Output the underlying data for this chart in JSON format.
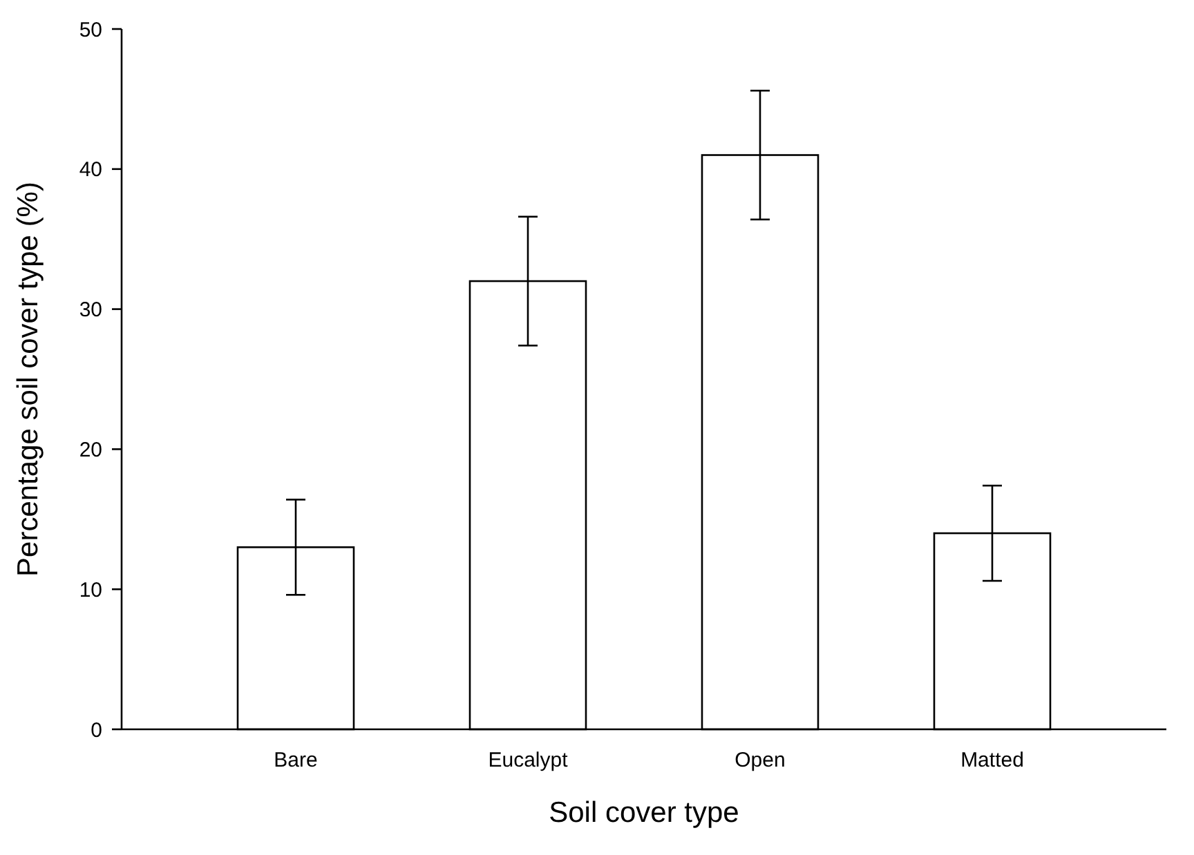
{
  "chart_data": {
    "type": "bar",
    "xlabel": "Soil cover type",
    "ylabel": "Percentage soil cover type (%)",
    "categories": [
      "Bare",
      "Eucalypt",
      "Open",
      "Matted"
    ],
    "values": [
      13,
      32,
      41,
      14
    ],
    "errors": [
      3.4,
      4.6,
      4.6,
      3.4
    ],
    "color": "#ffffff",
    "ylim": [
      0,
      50
    ],
    "yticks": [
      0,
      10,
      20,
      30,
      40,
      50
    ],
    "grid": false
  }
}
